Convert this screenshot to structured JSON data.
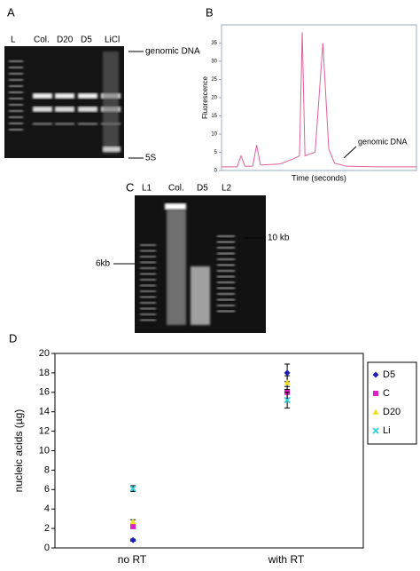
{
  "panel_labels": [
    "A",
    "B",
    "C",
    "D"
  ],
  "gel_A": {
    "lanes": [
      "L",
      "Col.",
      "D20",
      "D5",
      "LiCl"
    ],
    "annotations": [
      "genomic DNA",
      "5S"
    ]
  },
  "gel_C": {
    "lanes": [
      "L1",
      "Col.",
      "D5",
      "L2"
    ],
    "annotations": [
      "10 kb",
      "6kb"
    ]
  },
  "chart_data": [
    {
      "type": "scatter",
      "ylabel": "nucleic acids (µg)",
      "categories": [
        "no RT",
        "with RT"
      ],
      "ylim": [
        0,
        20
      ],
      "yticks": [
        0,
        2,
        4,
        6,
        8,
        10,
        12,
        14,
        16,
        18,
        20
      ],
      "series": [
        {
          "name": "D5",
          "color": "#1f1fb4",
          "marker": "diamond",
          "values": [
            0.8,
            18
          ],
          "errors": [
            0.1,
            0.9
          ]
        },
        {
          "name": "C",
          "color": "#e020c8",
          "marker": "square",
          "values": [
            2.2,
            16
          ],
          "errors": [
            0.2,
            0.6
          ]
        },
        {
          "name": "D20",
          "color": "#f0e020",
          "marker": "triangle",
          "values": [
            2.7,
            17
          ],
          "errors": [
            0.2,
            0.7
          ]
        },
        {
          "name": "Li",
          "color": "#30d0e0",
          "marker": "x",
          "values": [
            6.1,
            15.2
          ],
          "errors": [
            0.3,
            0.8
          ]
        }
      ],
      "legend": "right"
    },
    {
      "type": "line",
      "ylabel": "Fluorescence",
      "xlabel": "Time (seconds)",
      "annotation": "genomic DNA",
      "color": "#e0609a",
      "xlim": [
        15,
        65
      ],
      "ylim": [
        0,
        40
      ],
      "yticks": [
        0,
        5,
        10,
        15,
        20,
        25,
        30,
        35
      ],
      "x": [
        15,
        19,
        20,
        21,
        23,
        24,
        25,
        30,
        33,
        35,
        35.7,
        36.4,
        37.5,
        39,
        40,
        41,
        42.5,
        44,
        47,
        55,
        65
      ],
      "values": [
        1,
        1,
        4,
        1.2,
        1.2,
        7,
        1.5,
        1.8,
        3,
        4,
        38,
        4,
        4.5,
        5,
        20,
        35,
        6,
        2,
        1.2,
        1,
        1
      ]
    }
  ]
}
